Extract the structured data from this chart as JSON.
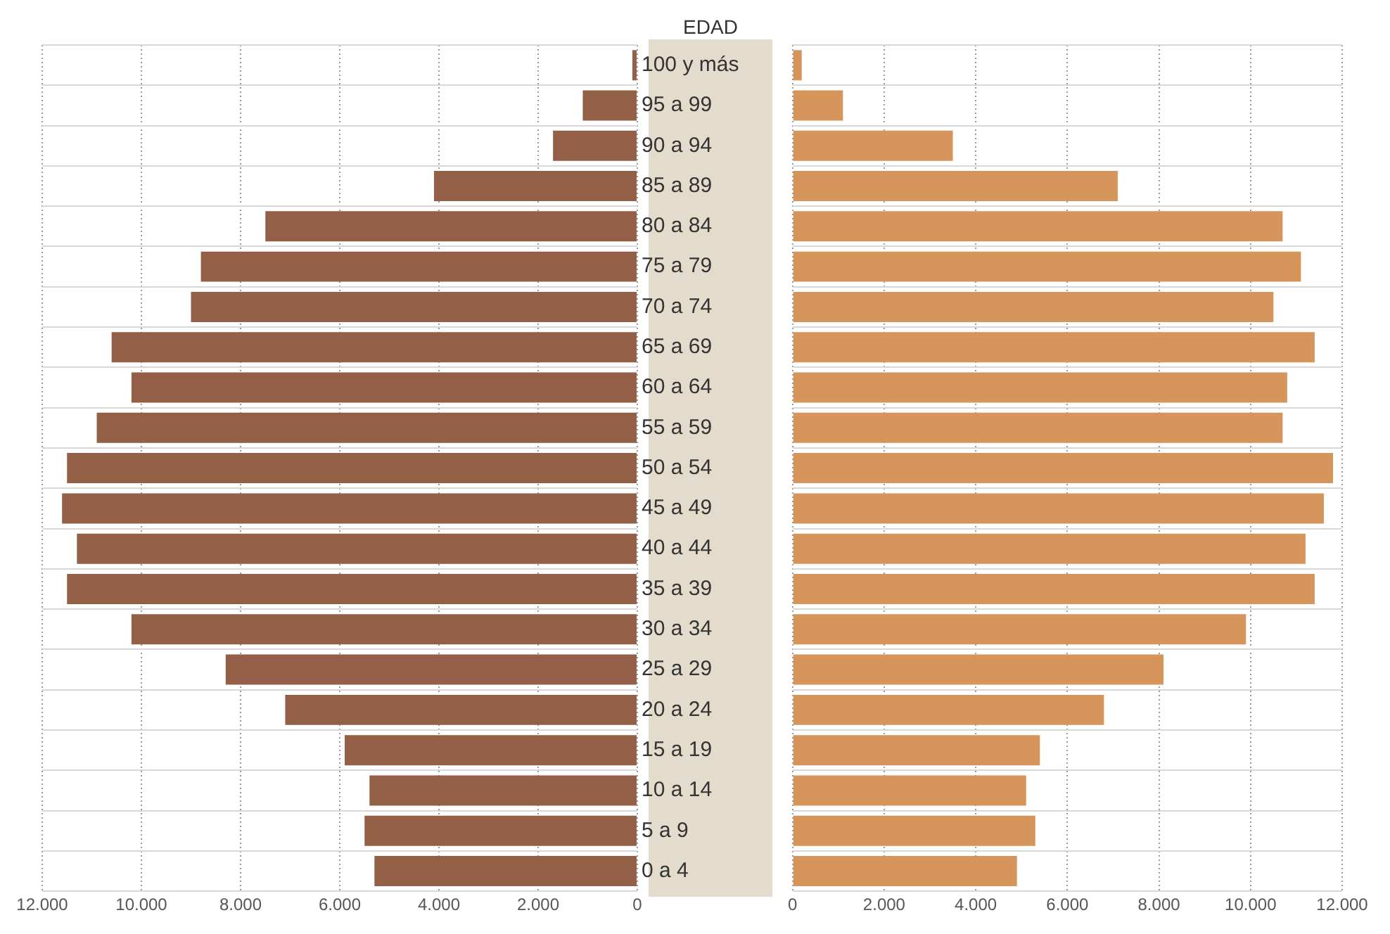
{
  "chart_data": [
    {
      "type": "bar",
      "orientation": "horizontal",
      "categories": [
        "100 y más",
        "95 a 99",
        "90 a 94",
        "85 a 89",
        "80 a 84",
        "75 a 79",
        "70 a 74",
        "65 a 69",
        "60 a 64",
        "55 a 59",
        "50 a 54",
        "45 a 49",
        "40 a 44",
        "35 a 39",
        "30 a 34",
        "25 a 29",
        "20 a 24",
        "15 a 19",
        "10 a 14",
        "5 a 9",
        "0 a 4"
      ],
      "series": [
        {
          "color": "#935f46",
          "values": [
            100,
            1100,
            1700,
            4100,
            7500,
            8800,
            9000,
            10600,
            10200,
            10900,
            11500,
            11600,
            11300,
            11500,
            10200,
            8300,
            7100,
            5900,
            5400,
            5500,
            5300
          ]
        }
      ],
      "xlim": [
        12000,
        0
      ],
      "xticks": [
        {
          "value": 12000,
          "label": "12.000"
        },
        {
          "value": 10000,
          "label": "10.000"
        },
        {
          "value": 8000,
          "label": "8.000"
        },
        {
          "value": 6000,
          "label": "6.000"
        },
        {
          "value": 4000,
          "label": "4.000"
        },
        {
          "value": 2000,
          "label": "2.000"
        },
        0
      ],
      "grid": true,
      "title": "EDAD"
    },
    {
      "type": "bar",
      "orientation": "horizontal",
      "tick_labels": "x",
      "categories": [
        null,
        null,
        null,
        null,
        null,
        null,
        null,
        null,
        null,
        null,
        null,
        null,
        null,
        null,
        null,
        null,
        null,
        null,
        null,
        null,
        null
      ],
      "series": [
        {
          "color": "#d6955a",
          "values": [
            200,
            1100,
            3500,
            7100,
            10700,
            11100,
            10500,
            11400,
            10800,
            10700,
            11800,
            11600,
            11200,
            11400,
            9900,
            8100,
            6800,
            5400,
            5100,
            5300,
            4900
          ]
        }
      ],
      "xlim": [
        0,
        12000
      ],
      "xticks": [
        0,
        {
          "value": 2000,
          "label": "2.000"
        },
        {
          "value": 4000,
          "label": "4.000"
        },
        {
          "value": 6000,
          "label": "6.000"
        },
        {
          "value": 8000,
          "label": "8.000"
        },
        {
          "value": 10000,
          "label": "10.000"
        },
        {
          "value": 12000,
          "label": "12.000"
        }
      ],
      "grid": true
    }
  ]
}
